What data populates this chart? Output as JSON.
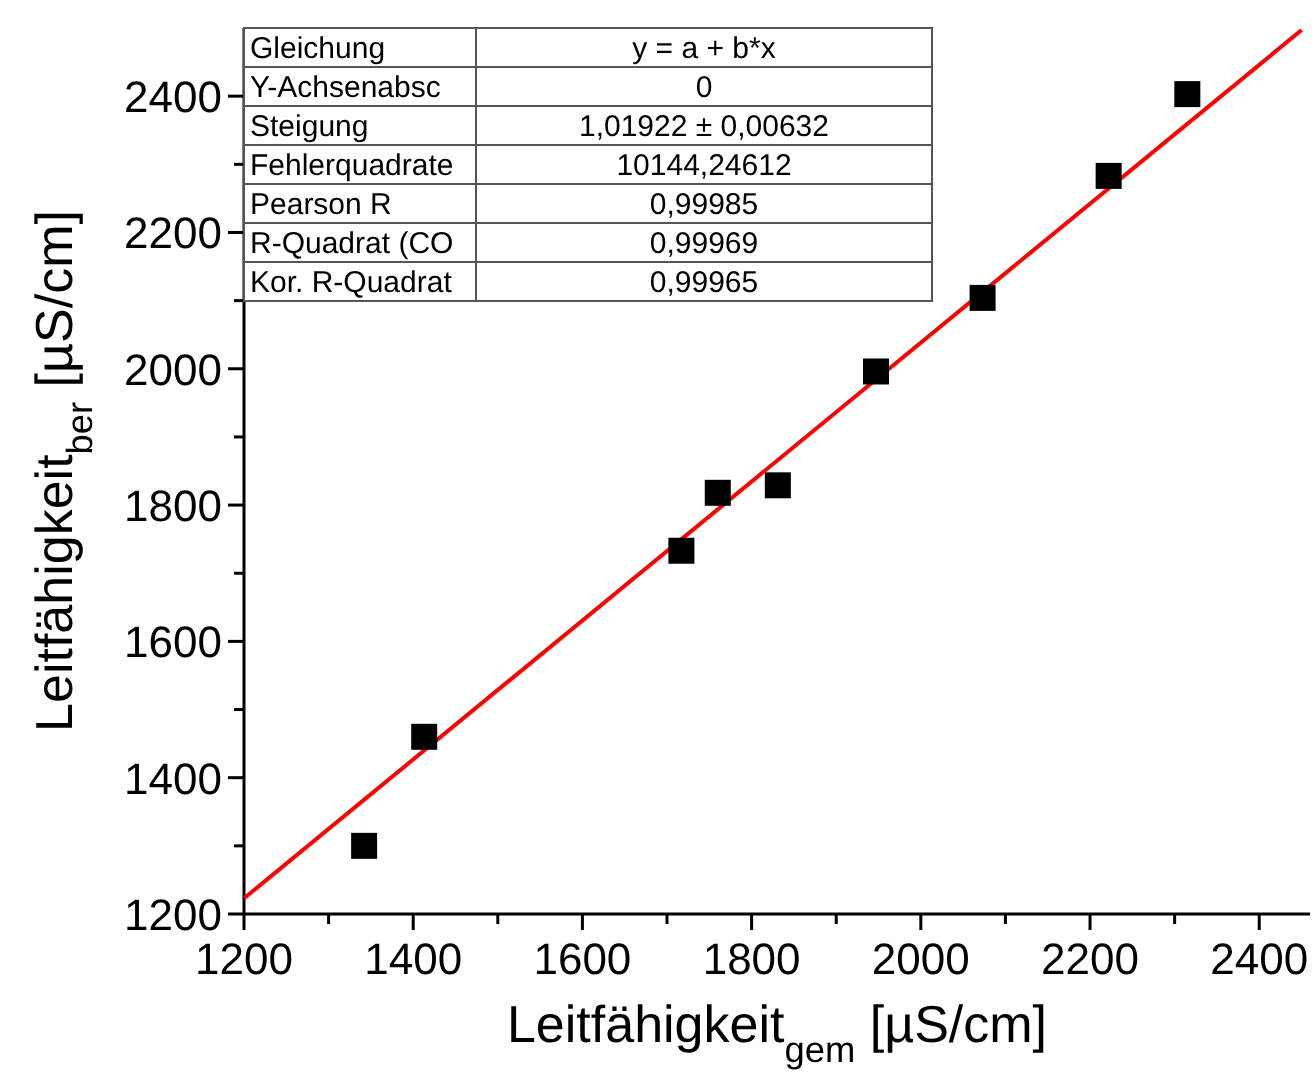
{
  "chart_data": {
    "type": "scatter",
    "xlabel": "Leitfähigkeit$_{gem}$ [µS/cm]",
    "ylabel": "Leitfähigkeit$_{ber}$ [µS/cm]",
    "xlim": [
      1200,
      2460
    ],
    "ylim": [
      1200,
      2500
    ],
    "xticks": [
      1200,
      {
        "value": 1300,
        "label": null
      },
      1400,
      {
        "value": 1500,
        "label": null
      },
      1600,
      {
        "value": 1700,
        "label": null
      },
      1800,
      {
        "value": 1900,
        "label": null
      },
      2000,
      {
        "value": 2100,
        "label": null
      },
      2200,
      {
        "value": 2300,
        "label": null
      },
      2400
    ],
    "yticks": [
      1200,
      {
        "value": 1300,
        "label": null
      },
      1400,
      {
        "value": 1500,
        "label": null
      },
      1600,
      {
        "value": 1700,
        "label": null
      },
      1800,
      {
        "value": 1900,
        "label": null
      },
      2000,
      {
        "value": 2100,
        "label": null
      },
      2200,
      {
        "value": 2300,
        "label": null
      },
      2400
    ],
    "grid": false,
    "series": [
      {
        "marker": "square",
        "color": "#000000",
        "x": [
          1342,
          1413,
          1717,
          1760,
          1831,
          1947,
          2073,
          2222,
          2315
        ],
        "values": [
          1300,
          1460,
          1733,
          1818,
          1829,
          1996,
          2104,
          2283,
          2403
        ]
      },
      {
        "type": "line",
        "color": "#ff0000",
        "x": [
          1200,
          2450
        ],
        "values": [
          1223,
          2497
        ]
      }
    ],
    "annotations": [
      "Gleichung",
      "y = a + b*x",
      "Y-Achsenabsc",
      "0",
      "Steigung",
      "1,01922 ± 0,00632",
      "Fehlerquadrate",
      "10144,24612",
      "Pearson R",
      "0,99985",
      "R-Quadrat (CO",
      "0,99969",
      "Kor. R-Quadrat",
      "0,99965"
    ]
  }
}
